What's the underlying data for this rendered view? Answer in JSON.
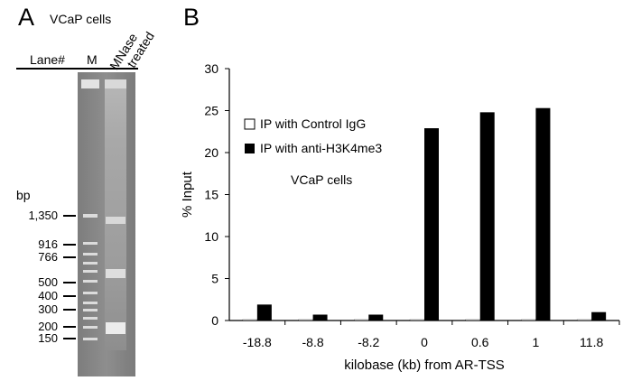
{
  "panel_a": {
    "letter": "A",
    "title": "VCaP cells",
    "lane_header": "Lane#",
    "lane_m": "M",
    "lane_mnase_line1": "MNase",
    "lane_mnase_line2": "treated",
    "bp_unit": "bp",
    "markers": [
      "1,350",
      "916",
      "766",
      "500",
      "400",
      "300",
      "200",
      "150"
    ]
  },
  "panel_b": {
    "letter": "B",
    "cell_label": "VCaP cells"
  },
  "chart_data": {
    "type": "bar",
    "title": "",
    "xlabel": "kilobase (kb) from AR-TSS",
    "ylabel": "% Input",
    "categories": [
      "-18.8",
      "-8.8",
      "-8.2",
      "0",
      "0.6",
      "1",
      "11.8"
    ],
    "ylim": [
      0,
      30
    ],
    "yticks": [
      0,
      5,
      10,
      15,
      20,
      25,
      30
    ],
    "series": [
      {
        "name": "IP with Control IgG",
        "values": [
          0.1,
          0.1,
          0.1,
          0.1,
          0.1,
          0.1,
          0.1
        ],
        "color": "#ffffff"
      },
      {
        "name": "IP with anti-H3K4me3",
        "values": [
          1.9,
          0.7,
          0.7,
          22.9,
          24.8,
          25.3,
          1.0
        ],
        "color": "#000000"
      }
    ],
    "legend_position": "upper-left"
  }
}
